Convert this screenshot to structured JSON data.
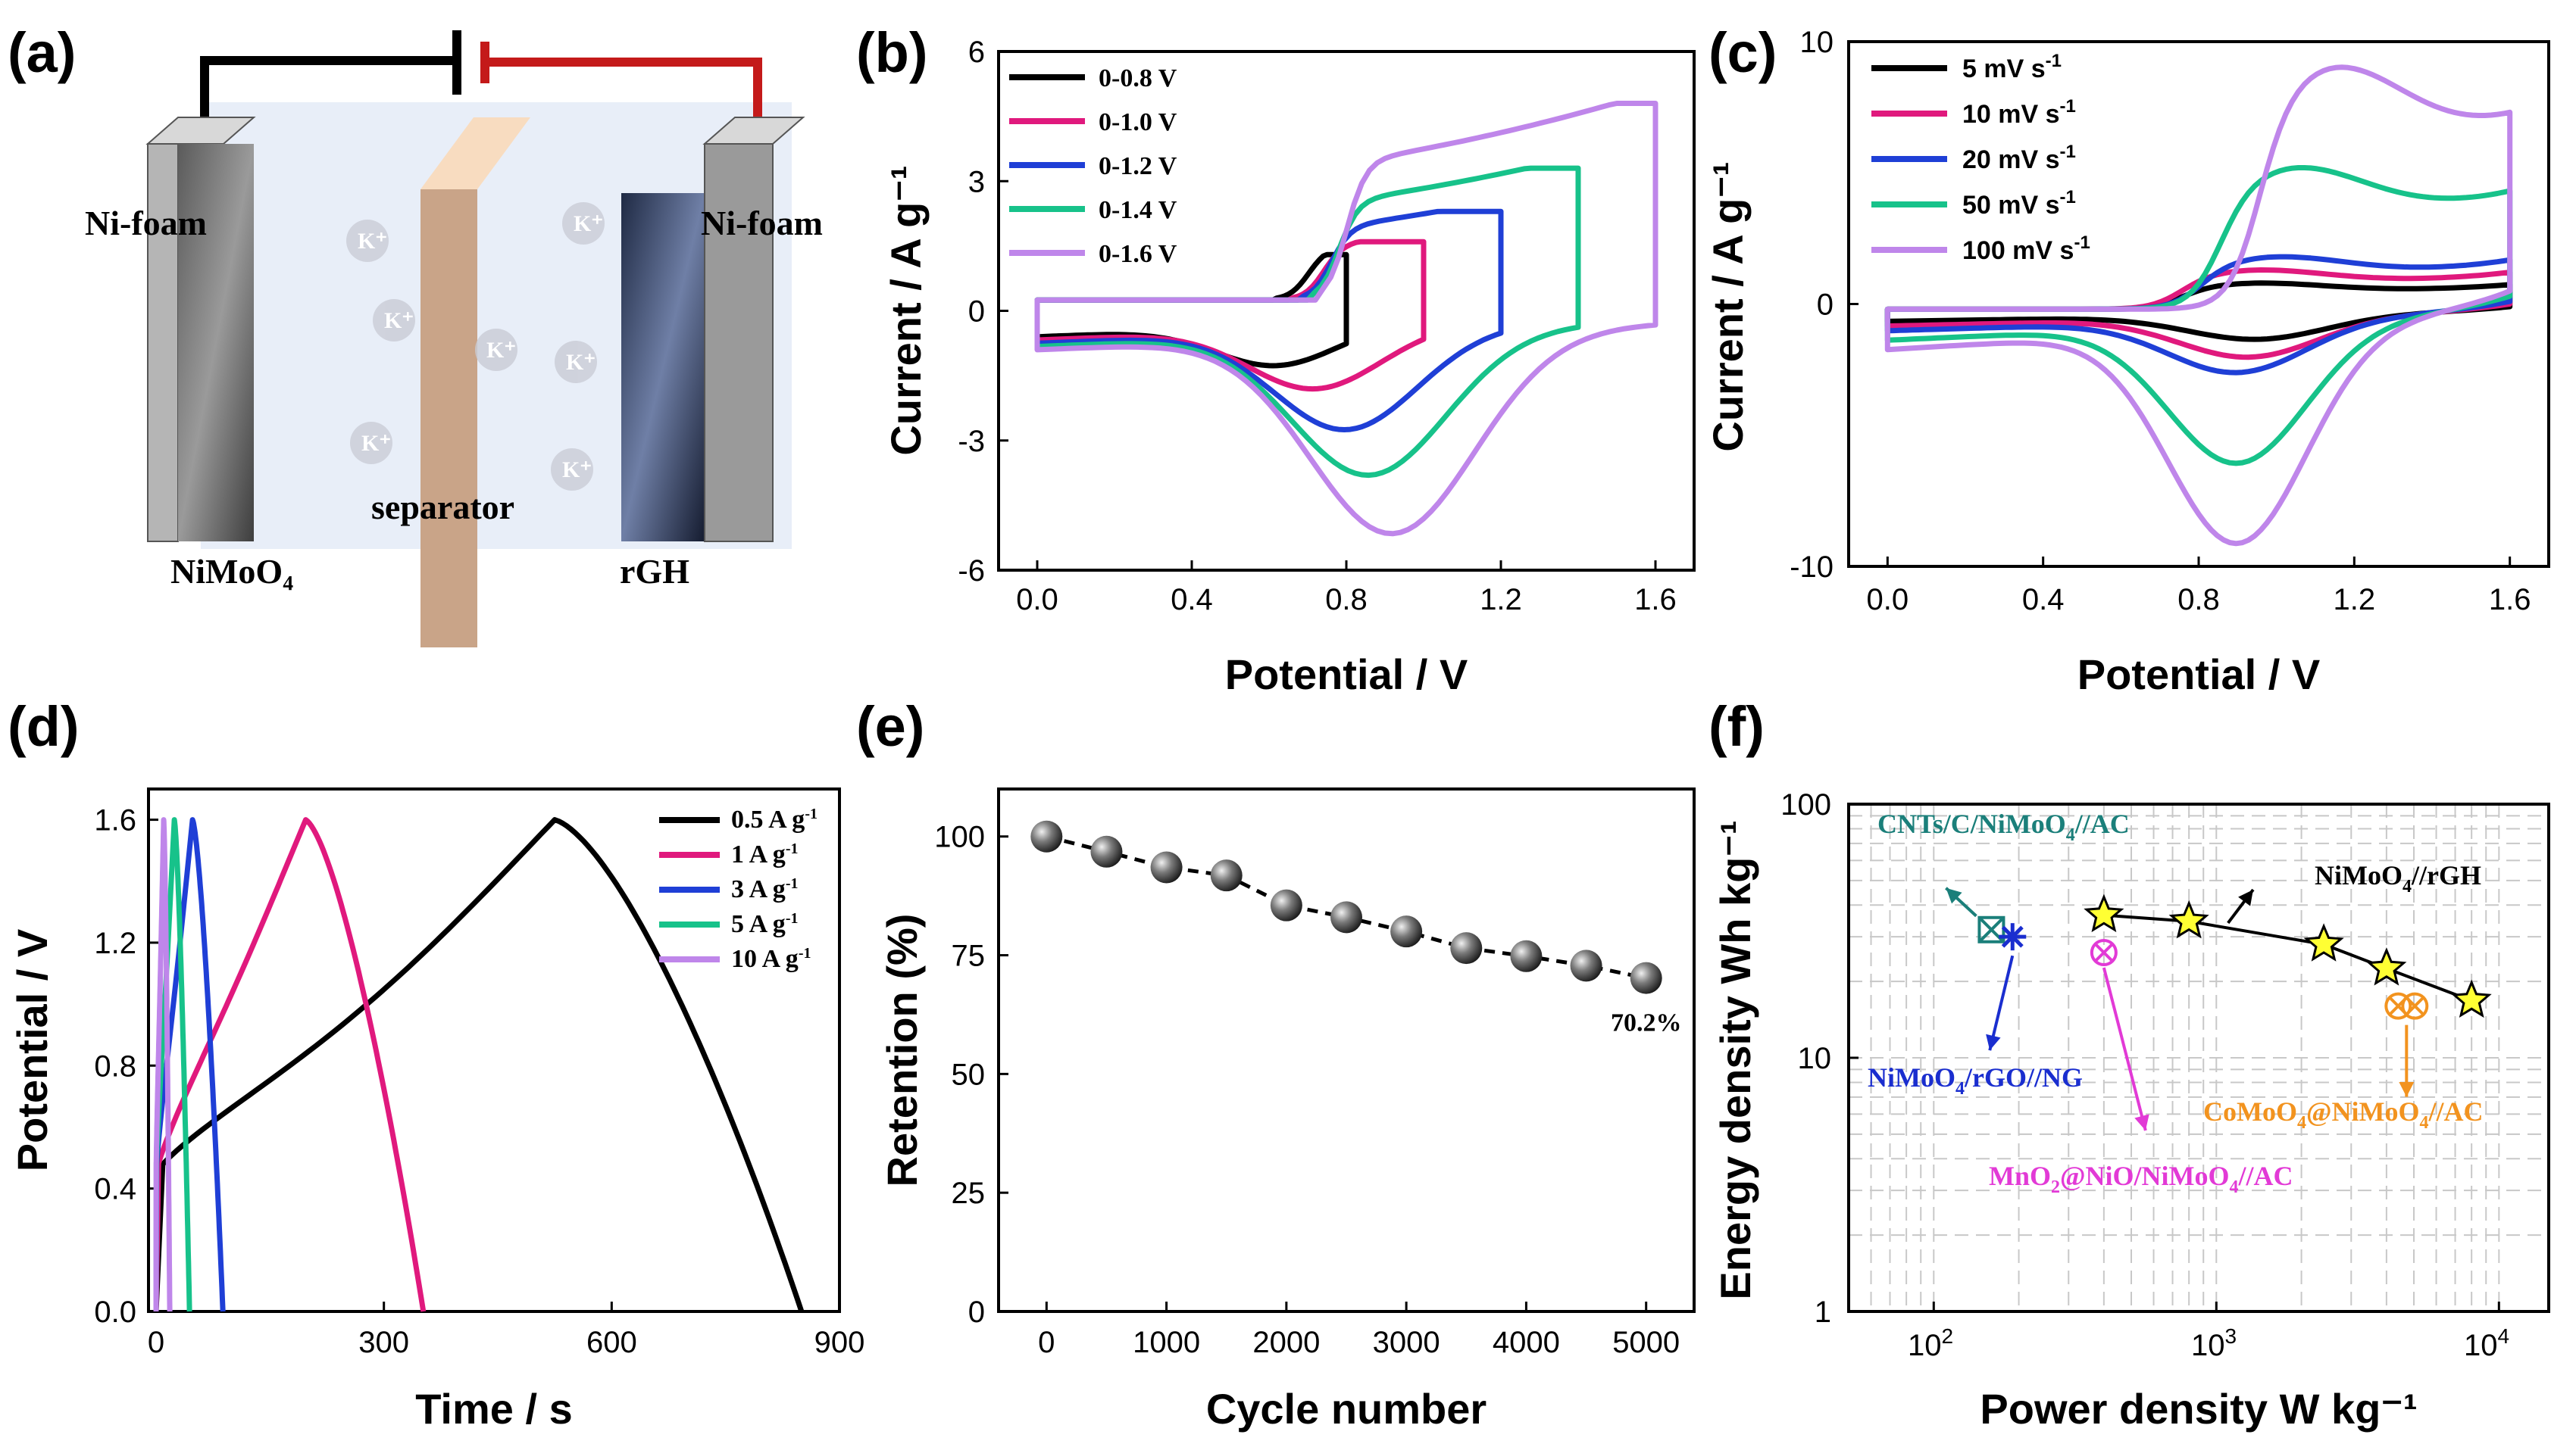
{
  "panels": {
    "a": {
      "label": "(a)",
      "ni_left": "Ni-foam",
      "ni_right": "Ni-foam",
      "separator": "separator",
      "cathode": "NiMoO₄",
      "anode": "rGH",
      "ion": "K⁺"
    },
    "b": {
      "label": "(b)"
    },
    "c": {
      "label": "(c)"
    },
    "d": {
      "label": "(d)"
    },
    "e": {
      "label": "(e)"
    },
    "f": {
      "label": "(f)"
    }
  },
  "colors": {
    "black": "#000000",
    "pink": "#e0197d",
    "blue": "#1f3fd6",
    "green": "#17c28a",
    "violet": "#bf86ea",
    "teal": "#1b7f7a",
    "magenta": "#e23ad6",
    "orange": "#f2931f",
    "navy": "#1a2ecf"
  },
  "chart_data": [
    {
      "id": "b",
      "type": "line",
      "xlabel": "Potential / V",
      "ylabel": "Current / A g⁻¹",
      "xlim": [
        -0.1,
        1.7
      ],
      "ylim": [
        -6,
        6
      ],
      "xticks": [
        "0.0",
        "0.4",
        "0.8",
        "1.2",
        "1.6"
      ],
      "yticks": [
        "-6",
        "-3",
        "0",
        "3",
        "6"
      ],
      "legend_position": "top-left",
      "series": [
        {
          "name": "0-0.8 V",
          "color": "black",
          "vmax": 0.8,
          "a": 0.9,
          "ox": 1.3,
          "red": -0.9,
          "ep": 0.7,
          "er": 0.62
        },
        {
          "name": "0-1.0 V",
          "color": "pink",
          "vmax": 1.0,
          "a": 1.0,
          "ox": 1.6,
          "red": -1.4,
          "ep": 0.74,
          "er": 0.72
        },
        {
          "name": "0-1.2 V",
          "color": "blue",
          "vmax": 1.2,
          "a": 1.1,
          "ox": 2.3,
          "red": -2.3,
          "ep": 0.76,
          "er": 0.8
        },
        {
          "name": "0-1.4 V",
          "color": "green",
          "vmax": 1.4,
          "a": 1.2,
          "ox": 3.3,
          "red": -3.3,
          "ep": 0.78,
          "er": 0.86
        },
        {
          "name": "0-1.6 V",
          "color": "violet",
          "vmax": 1.6,
          "a": 1.3,
          "ox": 4.8,
          "red": -4.6,
          "ep": 0.8,
          "er": 0.92
        }
      ]
    },
    {
      "id": "c",
      "type": "line",
      "xlabel": "Potential / V",
      "ylabel": "Current / A g⁻¹",
      "xlim": [
        -0.1,
        1.7
      ],
      "ylim": [
        -10,
        10
      ],
      "xticks": [
        "0.0",
        "0.4",
        "0.8",
        "1.2",
        "1.6"
      ],
      "yticks": [
        "-10",
        "0",
        "10"
      ],
      "legend_position": "top-left",
      "series": [
        {
          "name": "5 mV s",
          "sup": "-1",
          "color": "black",
          "ox": 1.0,
          "red": -0.9,
          "ep": 0.95,
          "er": 0.95,
          "a": 0.4
        },
        {
          "name": "10 mV s",
          "sup": "-1",
          "color": "pink",
          "ox": 1.5,
          "red": -1.5,
          "ep": 0.95,
          "er": 0.93,
          "a": 0.6
        },
        {
          "name": "20 mV s",
          "sup": "-1",
          "color": "blue",
          "ox": 2.0,
          "red": -2.0,
          "ep": 1.0,
          "er": 0.9,
          "a": 0.8
        },
        {
          "name": "50 mV s",
          "sup": "-1",
          "color": "green",
          "ox": 5.4,
          "red": -5.3,
          "ep": 1.05,
          "er": 0.9,
          "a": 1.2
        },
        {
          "name": "100 mV s",
          "sup": "-1",
          "color": "violet",
          "ox": 9.2,
          "red": -8.2,
          "ep": 1.15,
          "er": 0.9,
          "a": 1.6
        }
      ]
    },
    {
      "id": "d",
      "type": "line",
      "xlabel": "Time / s",
      "ylabel": "Potential / V",
      "xlim": [
        -10,
        900
      ],
      "ylim": [
        0,
        1.7
      ],
      "xticks": [
        "0",
        "300",
        "600",
        "900"
      ],
      "yticks": [
        "0.0",
        "0.4",
        "0.8",
        "1.2",
        "1.6"
      ],
      "legend_position": "top-right",
      "series": [
        {
          "name": "0.5 A g",
          "sup": "-1",
          "color": "black",
          "tc": 525,
          "td": 325
        },
        {
          "name": "1 A g",
          "sup": "-1",
          "color": "pink",
          "tc": 197,
          "td": 155
        },
        {
          "name": "3 A g",
          "sup": "-1",
          "color": "blue",
          "tc": 48,
          "td": 40
        },
        {
          "name": "5 A g",
          "sup": "-1",
          "color": "green",
          "tc": 24,
          "td": 20
        },
        {
          "name": "10 A g",
          "sup": "-1",
          "color": "violet",
          "tc": 10,
          "td": 8
        }
      ]
    },
    {
      "id": "e",
      "type": "scatter",
      "xlabel": "Cycle number",
      "ylabel": "Retention (%)",
      "xlim": [
        -400,
        5400
      ],
      "ylim": [
        0,
        110
      ],
      "xticks": [
        "0",
        "1000",
        "2000",
        "3000",
        "4000",
        "5000"
      ],
      "yticks": [
        "0",
        "25",
        "50",
        "75",
        "100"
      ],
      "x": [
        0,
        500,
        1000,
        1500,
        2000,
        2500,
        3000,
        3500,
        4000,
        4500,
        5000
      ],
      "y": [
        100,
        96.8,
        93.5,
        91.8,
        85.5,
        83.0,
        80.0,
        76.5,
        74.8,
        72.8,
        70.2
      ],
      "annotation": "70.2%"
    },
    {
      "id": "f",
      "type": "scatter",
      "xlabel": "Power density W kg⁻¹",
      "ylabel": "Energy density Wh kg⁻¹",
      "xscale": "log",
      "yscale": "log",
      "xlim": [
        50,
        15000
      ],
      "ylim": [
        1,
        100
      ],
      "yticks": [
        "1",
        "10",
        "100"
      ],
      "this_work": {
        "name": "NiMoO4//rGH",
        "x": [
          400,
          800,
          2400,
          4000,
          8000
        ],
        "y": [
          36.5,
          34.5,
          28,
          22.5,
          16.8
        ]
      },
      "references": [
        {
          "name": "CNTs/C/NiMoO4//AC",
          "color": "teal",
          "x": 160,
          "y": 32
        },
        {
          "name": "NiMoO4/rGO//NG",
          "color": "navy",
          "x": 190,
          "y": 30
        },
        {
          "name": "MnO2@NiO/NiMoO4//AC",
          "color": "magenta",
          "x": 400,
          "y": 26
        },
        {
          "name": "CoMoO4@NiMoO4//AC",
          "color": "orange",
          "x": 4400,
          "y": 16
        }
      ]
    }
  ],
  "text": {
    "log_x_ticks": {
      "b1": "10",
      "e1": "2",
      "b2": "10",
      "e2": "3",
      "b3": "10",
      "e3": "4"
    },
    "f_labels": {
      "rgh": {
        "pre": "NiMoO",
        "s": "4",
        "post": "//rGH"
      },
      "cnt": {
        "pre": "CNTs/C/NiMoO",
        "s": "4",
        "post": "//AC"
      },
      "rgo": {
        "pre": "NiMoO",
        "s": "4",
        "post": "/rGO//NG"
      },
      "mno": {
        "p1": "MnO",
        "s1": "2",
        "p2": "@NiO/NiMoO",
        "s2": "4",
        "p3": "//AC"
      },
      "como": {
        "p1": "CoMoO",
        "s1": "4",
        "p2": "@NiMoO",
        "s2": "4",
        "p3": "//AC"
      }
    }
  }
}
